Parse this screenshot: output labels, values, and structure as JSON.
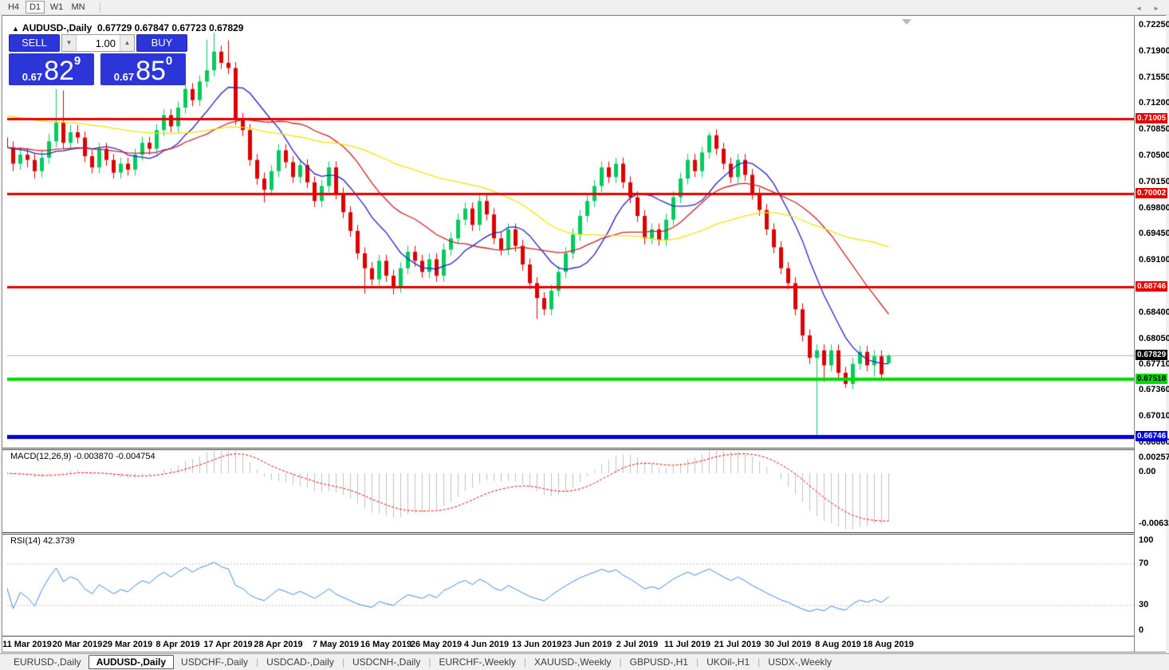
{
  "toolbar": {
    "buttons": [
      {
        "label": "H4",
        "active": false
      },
      {
        "label": "D1",
        "active": true
      },
      {
        "label": "W1",
        "active": false
      },
      {
        "label": "MN",
        "active": false
      }
    ]
  },
  "icons": {
    "symbol_marker": "▲",
    "scroll_marker": "▼",
    "spin_down": "▼",
    "spin_up": "▲",
    "tabs_left": "◄",
    "tabs_right": "►"
  },
  "header": {
    "symbol": "AUDUSD-,Daily",
    "ohlc": "0.67729 0.67847 0.67723 0.67829"
  },
  "trade_panel": {
    "sell_label": "SELL",
    "buy_label": "BUY",
    "volume": "1.00",
    "sell": {
      "prefix": "0.67",
      "big": "82",
      "sup": "9"
    },
    "buy": {
      "prefix": "0.67",
      "big": "85",
      "sup": "0"
    }
  },
  "price_axis": {
    "ticks": [
      "0.72250",
      "0.71900",
      "0.71550",
      "0.71200",
      "0.70850",
      "0.70500",
      "0.70150",
      "0.69800",
      "0.69450",
      "0.69100",
      "0.68400",
      "0.68050",
      "0.67710",
      "0.67360",
      "0.67010",
      "0.66660"
    ]
  },
  "chart_data": {
    "type": "candlestick",
    "symbol": "AUDUSD",
    "timeframe": "Daily",
    "colors": {
      "up": "#00cc5e",
      "down": "#df0000",
      "ma_fast": "#2121cc",
      "ma_mid": "#cc2028",
      "ma_slow": "#f0e400",
      "macd_hist": "#c0c0c0",
      "macd_signal": "#ff0000",
      "rsi": "#3d85e8",
      "level": "#c0c0c0",
      "current": "#b4b4b4"
    },
    "moving_averages": [
      {
        "period": 10,
        "color": "#2121cc"
      },
      {
        "period": 21,
        "color": "#cc2028"
      },
      {
        "period": 45,
        "color": "#f0e400"
      }
    ],
    "hlines": [
      {
        "price": 0.71005,
        "color": "#e60000",
        "width": 3,
        "label": "0.71005",
        "bg": "#e60000",
        "fg": "#ffffff"
      },
      {
        "price": 0.70002,
        "color": "#e60000",
        "width": 3,
        "label": "0.70002",
        "bg": "#e60000",
        "fg": "#ffffff"
      },
      {
        "price": 0.68746,
        "color": "#e60000",
        "width": 3,
        "label": "0.68746",
        "bg": "#e60000",
        "fg": "#ffffff"
      },
      {
        "price": 0.67518,
        "color": "#00dc00",
        "width": 4,
        "label": "0.67518",
        "bg": "#00dc00",
        "fg": "#000000"
      },
      {
        "price": 0.66746,
        "color": "#0000d0",
        "width": 5,
        "label": "0.66746",
        "bg": "#0000d0",
        "fg": "#ffffff"
      }
    ],
    "current_price": 0.67829,
    "current_badge": {
      "label": "0.67829",
      "bg": "#000000",
      "fg": "#ffffff"
    },
    "date_labels": [
      {
        "label": "11 Mar 2019",
        "index": 3
      },
      {
        "label": "20 Mar 2019",
        "index": 10
      },
      {
        "label": "29 Mar 2019",
        "index": 17
      },
      {
        "label": "8 Apr 2019",
        "index": 24
      },
      {
        "label": "17 Apr 2019",
        "index": 31
      },
      {
        "label": "28 Apr 2019",
        "index": 38
      },
      {
        "label": "7 May 2019",
        "index": 46
      },
      {
        "label": "16 May 2019",
        "index": 53
      },
      {
        "label": "26 May 2019",
        "index": 60
      },
      {
        "label": "4 Jun 2019",
        "index": 67
      },
      {
        "label": "13 Jun 2019",
        "index": 74
      },
      {
        "label": "23 Jun 2019",
        "index": 81
      },
      {
        "label": "2 Jul 2019",
        "index": 88
      },
      {
        "label": "11 Jul 2019",
        "index": 95
      },
      {
        "label": "21 Jul 2019",
        "index": 102
      },
      {
        "label": "30 Jul 2019",
        "index": 109
      },
      {
        "label": "8 Aug 2019",
        "index": 116
      },
      {
        "label": "18 Aug 2019",
        "index": 123
      }
    ],
    "candles": [
      [
        0.7075,
        0.7085,
        0.7052,
        0.7062
      ],
      [
        0.7062,
        0.707,
        0.703,
        0.704
      ],
      [
        0.704,
        0.7062,
        0.7032,
        0.7052
      ],
      [
        0.7052,
        0.706,
        0.7035,
        0.7045
      ],
      [
        0.7045,
        0.7053,
        0.702,
        0.703
      ],
      [
        0.703,
        0.7058,
        0.7022,
        0.7048
      ],
      [
        0.7048,
        0.708,
        0.704,
        0.707
      ],
      [
        0.707,
        0.714,
        0.7062,
        0.7095
      ],
      [
        0.7095,
        0.7138,
        0.706,
        0.7068
      ],
      [
        0.7068,
        0.7092,
        0.706,
        0.7082
      ],
      [
        0.7082,
        0.7092,
        0.7067,
        0.7075
      ],
      [
        0.7075,
        0.7083,
        0.7042,
        0.705
      ],
      [
        0.705,
        0.7058,
        0.7027,
        0.7035
      ],
      [
        0.7035,
        0.7068,
        0.7027,
        0.706
      ],
      [
        0.706,
        0.7068,
        0.7037,
        0.7045
      ],
      [
        0.7045,
        0.7053,
        0.702,
        0.7028
      ],
      [
        0.7028,
        0.7048,
        0.702,
        0.704
      ],
      [
        0.704,
        0.7048,
        0.7024,
        0.7032
      ],
      [
        0.7032,
        0.706,
        0.7024,
        0.7052
      ],
      [
        0.7052,
        0.7076,
        0.7044,
        0.7068
      ],
      [
        0.7068,
        0.7076,
        0.7052,
        0.706
      ],
      [
        0.706,
        0.7093,
        0.7052,
        0.7085
      ],
      [
        0.7085,
        0.7113,
        0.7077,
        0.7105
      ],
      [
        0.7105,
        0.7113,
        0.7082,
        0.709
      ],
      [
        0.709,
        0.7123,
        0.7082,
        0.7115
      ],
      [
        0.7115,
        0.7168,
        0.7107,
        0.714
      ],
      [
        0.714,
        0.7148,
        0.7117,
        0.7125
      ],
      [
        0.7125,
        0.7158,
        0.7117,
        0.715
      ],
      [
        0.715,
        0.7206,
        0.7142,
        0.7165
      ],
      [
        0.7165,
        0.7215,
        0.7157,
        0.719
      ],
      [
        0.719,
        0.7198,
        0.7167,
        0.7175
      ],
      [
        0.7175,
        0.7205,
        0.716,
        0.7168
      ],
      [
        0.7168,
        0.7176,
        0.7092,
        0.71
      ],
      [
        0.71,
        0.7108,
        0.7077,
        0.7085
      ],
      [
        0.7085,
        0.7093,
        0.7037,
        0.7045
      ],
      [
        0.7045,
        0.7053,
        0.7012,
        0.702
      ],
      [
        0.702,
        0.7028,
        0.6988,
        0.7005
      ],
      [
        0.7005,
        0.7038,
        0.6997,
        0.703
      ],
      [
        0.703,
        0.7066,
        0.7022,
        0.7058
      ],
      [
        0.7058,
        0.7066,
        0.7034,
        0.7042
      ],
      [
        0.7042,
        0.705,
        0.7014,
        0.7022
      ],
      [
        0.7022,
        0.7046,
        0.7014,
        0.7038
      ],
      [
        0.7038,
        0.7046,
        0.7007,
        0.7015
      ],
      [
        0.7015,
        0.7023,
        0.6982,
        0.699
      ],
      [
        0.699,
        0.7018,
        0.6982,
        0.701
      ],
      [
        0.701,
        0.7043,
        0.7002,
        0.7035
      ],
      [
        0.7035,
        0.7043,
        0.6992,
        0.7
      ],
      [
        0.7,
        0.7008,
        0.6967,
        0.6975
      ],
      [
        0.6975,
        0.6983,
        0.6942,
        0.695
      ],
      [
        0.695,
        0.6958,
        0.6912,
        0.692
      ],
      [
        0.692,
        0.6928,
        0.6866,
        0.69
      ],
      [
        0.69,
        0.6908,
        0.6877,
        0.6885
      ],
      [
        0.6885,
        0.6918,
        0.6877,
        0.691
      ],
      [
        0.691,
        0.6918,
        0.6882,
        0.689
      ],
      [
        0.689,
        0.6898,
        0.6865,
        0.6875
      ],
      [
        0.6875,
        0.6908,
        0.6867,
        0.69
      ],
      [
        0.69,
        0.693,
        0.6892,
        0.6922
      ],
      [
        0.6922,
        0.693,
        0.6902,
        0.691
      ],
      [
        0.691,
        0.6918,
        0.6887,
        0.6895
      ],
      [
        0.6895,
        0.692,
        0.6887,
        0.6912
      ],
      [
        0.6912,
        0.692,
        0.6882,
        0.689
      ],
      [
        0.689,
        0.6933,
        0.6882,
        0.6925
      ],
      [
        0.6925,
        0.6948,
        0.6917,
        0.694
      ],
      [
        0.694,
        0.6973,
        0.6932,
        0.6965
      ],
      [
        0.6965,
        0.6988,
        0.6957,
        0.698
      ],
      [
        0.698,
        0.6988,
        0.695,
        0.6958
      ],
      [
        0.6958,
        0.7,
        0.695,
        0.699
      ],
      [
        0.699,
        0.6998,
        0.6964,
        0.6972
      ],
      [
        0.6972,
        0.698,
        0.6932,
        0.694
      ],
      [
        0.694,
        0.6948,
        0.6917,
        0.6925
      ],
      [
        0.6925,
        0.696,
        0.6917,
        0.6952
      ],
      [
        0.6952,
        0.696,
        0.6922,
        0.693
      ],
      [
        0.693,
        0.6938,
        0.6897,
        0.6905
      ],
      [
        0.6905,
        0.6913,
        0.6872,
        0.688
      ],
      [
        0.688,
        0.6888,
        0.6832,
        0.686
      ],
      [
        0.686,
        0.6868,
        0.6837,
        0.6845
      ],
      [
        0.6845,
        0.6878,
        0.6837,
        0.687
      ],
      [
        0.687,
        0.6903,
        0.6862,
        0.6895
      ],
      [
        0.6895,
        0.6928,
        0.6887,
        0.692
      ],
      [
        0.692,
        0.6953,
        0.6912,
        0.6945
      ],
      [
        0.6945,
        0.6978,
        0.6937,
        0.697
      ],
      [
        0.697,
        0.7,
        0.6962,
        0.699
      ],
      [
        0.699,
        0.7018,
        0.6982,
        0.701
      ],
      [
        0.701,
        0.7043,
        0.7002,
        0.7035
      ],
      [
        0.7035,
        0.7043,
        0.7014,
        0.7022
      ],
      [
        0.7022,
        0.7048,
        0.7014,
        0.704
      ],
      [
        0.704,
        0.7048,
        0.7007,
        0.7015
      ],
      [
        0.7015,
        0.7023,
        0.6987,
        0.6995
      ],
      [
        0.6995,
        0.7003,
        0.6962,
        0.697
      ],
      [
        0.697,
        0.6978,
        0.6932,
        0.694
      ],
      [
        0.694,
        0.696,
        0.6932,
        0.6952
      ],
      [
        0.6952,
        0.696,
        0.693,
        0.6938
      ],
      [
        0.6938,
        0.6973,
        0.693,
        0.6965
      ],
      [
        0.6965,
        0.7003,
        0.6957,
        0.6995
      ],
      [
        0.6995,
        0.7028,
        0.6987,
        0.702
      ],
      [
        0.702,
        0.7053,
        0.7012,
        0.7045
      ],
      [
        0.7045,
        0.7053,
        0.7022,
        0.703
      ],
      [
        0.703,
        0.7063,
        0.7022,
        0.7055
      ],
      [
        0.7055,
        0.7082,
        0.7047,
        0.7078
      ],
      [
        0.7078,
        0.7086,
        0.7052,
        0.706
      ],
      [
        0.706,
        0.7068,
        0.7032,
        0.704
      ],
      [
        0.704,
        0.7048,
        0.7014,
        0.7022
      ],
      [
        0.7022,
        0.7053,
        0.7014,
        0.7045
      ],
      [
        0.7045,
        0.7053,
        0.7017,
        0.7025
      ],
      [
        0.7025,
        0.7033,
        0.6992,
        0.7
      ],
      [
        0.7,
        0.7008,
        0.697,
        0.6978
      ],
      [
        0.6978,
        0.6986,
        0.6944,
        0.6952
      ],
      [
        0.6952,
        0.696,
        0.692,
        0.6928
      ],
      [
        0.6928,
        0.6936,
        0.6892,
        0.69
      ],
      [
        0.69,
        0.6908,
        0.6872,
        0.688
      ],
      [
        0.688,
        0.6888,
        0.6837,
        0.6845
      ],
      [
        0.6845,
        0.6853,
        0.6802,
        0.681
      ],
      [
        0.681,
        0.6818,
        0.6772,
        0.678
      ],
      [
        0.678,
        0.6798,
        0.6677,
        0.679
      ],
      [
        0.679,
        0.6798,
        0.6748,
        0.677
      ],
      [
        0.677,
        0.6798,
        0.6762,
        0.679
      ],
      [
        0.679,
        0.6798,
        0.6752,
        0.676
      ],
      [
        0.676,
        0.6768,
        0.674,
        0.6745
      ],
      [
        0.6745,
        0.678,
        0.6738,
        0.6772
      ],
      [
        0.6772,
        0.6796,
        0.6764,
        0.6788
      ],
      [
        0.6788,
        0.6796,
        0.6762,
        0.677
      ],
      [
        0.677,
        0.679,
        0.6755,
        0.6782
      ],
      [
        0.6782,
        0.679,
        0.675,
        0.6758
      ],
      [
        0.67729,
        0.67847,
        0.67723,
        0.67829
      ]
    ],
    "macd": {
      "label": "MACD(12,26,9)",
      "value_main": "-0.003870",
      "value_signal": "-0.004754",
      "params": [
        12,
        26,
        9
      ],
      "scale": [
        "0.002574",
        "0.00",
        "-0.006326"
      ]
    },
    "rsi": {
      "label": "RSI(14)",
      "value": "42.3739",
      "period": 14,
      "levels": [
        70,
        30
      ],
      "scale": [
        "100",
        "70",
        "30",
        "0"
      ]
    }
  },
  "tabs": {
    "items": [
      {
        "label": "EURUSD-,Daily",
        "active": false
      },
      {
        "label": "AUDUSD-,Daily",
        "active": true
      },
      {
        "label": "USDCHF-,Daily",
        "active": false
      },
      {
        "label": "USDCAD-,Daily",
        "active": false
      },
      {
        "label": "USDCNH-,Daily",
        "active": false
      },
      {
        "label": "EURCHF-,Weekly",
        "active": false
      },
      {
        "label": "XAUUSD-,Weekly",
        "active": false
      },
      {
        "label": "GBPUSD-,H1",
        "active": false
      },
      {
        "label": "UKOil-,H1",
        "active": false
      },
      {
        "label": "USDX-,Weekly",
        "active": false
      }
    ]
  }
}
